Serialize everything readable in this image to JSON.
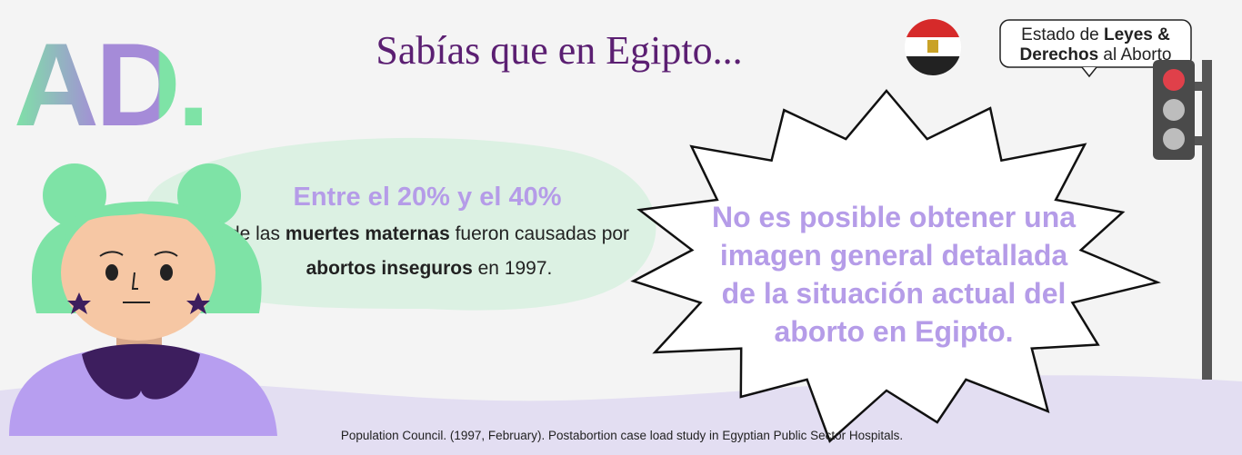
{
  "logo": "AD.",
  "title": "Sabías que en Egipto...",
  "badge": {
    "lines": [
      [
        "Estado de ",
        "Leyes &"
      ],
      [
        "Derechos",
        " al Aborto"
      ]
    ]
  },
  "speech": {
    "headline": "Entre el 20% y el 40%",
    "lines": [
      [
        "de las ",
        "muertes maternas",
        " fueron causadas por"
      ],
      [
        "abortos inseguros",
        " en 1997."
      ]
    ]
  },
  "burst": {
    "lines": [
      "No es posible obtener una",
      "imagen general detallada",
      "de la situación actual del",
      "aborto en Egipto."
    ]
  },
  "source": "Population Council. (1997, February). Postabortion case load study in Egyptian Public Sector Hospitals."
}
